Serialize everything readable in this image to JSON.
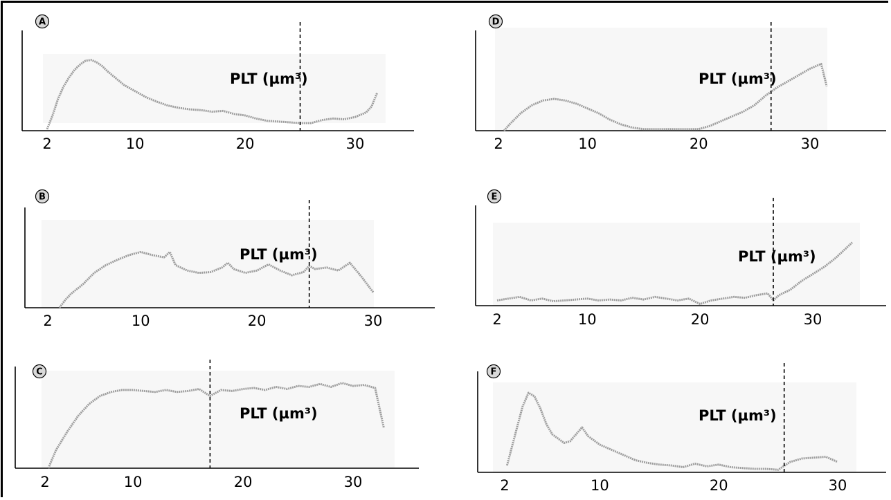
{
  "chart_data": [
    {
      "panel": "A",
      "type": "line",
      "annotation": "PLT (µm³)",
      "xticks": [
        2,
        10,
        20,
        30
      ],
      "xlim": [
        0,
        36
      ],
      "ylim": [
        0,
        100
      ],
      "cutoff_x": 25,
      "series": [
        {
          "color": "#9e9e9e",
          "x": [
            2.0,
            2.5,
            3,
            3.5,
            4,
            4.5,
            5,
            5.5,
            6,
            6.5,
            7,
            7.5,
            8,
            8.5,
            9,
            9.5,
            10,
            11,
            12,
            13,
            14,
            15,
            16,
            17,
            18,
            19,
            20,
            21,
            22,
            23,
            24,
            25,
            26,
            27,
            28,
            29,
            30,
            31,
            31.5,
            32
          ],
          "y": [
            2,
            20,
            42,
            58,
            70,
            80,
            87,
            92,
            93,
            90,
            85,
            78,
            72,
            66,
            60,
            56,
            52,
            44,
            38,
            33,
            30,
            28,
            27,
            25,
            26,
            22,
            20,
            16,
            13,
            12,
            11,
            10,
            10,
            14,
            16,
            15,
            18,
            24,
            32,
            50
          ]
        }
      ]
    },
    {
      "panel": "B",
      "type": "line",
      "annotation": "PLT (µm³)",
      "xticks": [
        2,
        10,
        20,
        30
      ],
      "xlim": [
        0,
        36
      ],
      "ylim": [
        0,
        100
      ],
      "cutoff_x": 24.5,
      "series": [
        {
          "color": "#9e9e9e",
          "x": [
            3,
            3.5,
            4,
            5,
            6,
            7,
            8,
            9,
            10,
            11,
            12,
            12.5,
            13,
            14,
            15,
            16,
            17,
            17.5,
            18,
            19,
            20,
            21,
            22,
            23,
            24,
            24.5,
            25,
            26,
            27,
            28,
            29,
            30
          ],
          "y": [
            0,
            10,
            18,
            30,
            45,
            55,
            62,
            68,
            72,
            68,
            65,
            72,
            55,
            48,
            45,
            46,
            52,
            58,
            50,
            45,
            48,
            56,
            48,
            42,
            46,
            54,
            50,
            52,
            48,
            58,
            40,
            20
          ]
        }
      ]
    },
    {
      "panel": "C",
      "type": "line",
      "annotation": "PLT (µm³)",
      "xticks": [
        2,
        10,
        20,
        30
      ],
      "xlim": [
        0,
        36
      ],
      "ylim": [
        0,
        100
      ],
      "cutoff_x": 17,
      "series": [
        {
          "color": "#9e9e9e",
          "x": [
            2.3,
            3,
            4,
            5,
            6,
            7,
            8,
            9,
            10,
            11,
            12,
            13,
            14,
            15,
            16,
            17,
            18,
            19,
            20,
            21,
            22,
            23,
            24,
            25,
            26,
            27,
            28,
            29,
            30,
            31,
            32,
            32.8
          ],
          "y": [
            0,
            18,
            36,
            52,
            64,
            72,
            76,
            78,
            78,
            77,
            76,
            78,
            76,
            77,
            79,
            72,
            78,
            77,
            79,
            80,
            78,
            81,
            79,
            82,
            81,
            84,
            81,
            85,
            82,
            83,
            80,
            40
          ]
        }
      ]
    },
    {
      "panel": "D",
      "type": "line",
      "annotation": "PLT (µm³)",
      "xticks": [
        2,
        10,
        20,
        30
      ],
      "xlim": [
        0,
        36
      ],
      "ylim": [
        0,
        100
      ],
      "cutoff_x": 26.5,
      "series": [
        {
          "color": "#9e9e9e",
          "x": [
            2.5,
            3,
            4,
            5,
            6,
            7,
            8,
            9,
            10,
            11,
            12,
            13,
            14,
            15,
            16,
            17,
            18,
            19,
            20,
            21,
            22,
            23,
            24,
            25,
            26,
            27,
            28,
            29,
            30,
            31,
            31.5
          ],
          "y": [
            0,
            8,
            22,
            32,
            38,
            40,
            38,
            34,
            28,
            22,
            14,
            8,
            4,
            2,
            2,
            2,
            2,
            2,
            2,
            6,
            12,
            18,
            24,
            32,
            44,
            54,
            62,
            70,
            78,
            84,
            56
          ]
        }
      ]
    },
    {
      "panel": "E",
      "type": "line",
      "annotation": "PLT (µm³)",
      "xticks": [
        2,
        10,
        20,
        30
      ],
      "xlim": [
        0,
        36
      ],
      "ylim": [
        0,
        100
      ],
      "cutoff_x": 26.5,
      "series": [
        {
          "color": "#9e9e9e",
          "x": [
            2,
            3,
            4,
            5,
            6,
            7,
            8,
            9,
            10,
            11,
            12,
            13,
            14,
            15,
            16,
            17,
            18,
            19,
            20,
            21,
            22,
            23,
            24,
            25,
            26,
            26.5,
            27,
            28,
            29,
            30,
            31,
            32,
            33,
            33.5
          ],
          "y": [
            6,
            8,
            10,
            6,
            8,
            5,
            6,
            7,
            8,
            6,
            7,
            6,
            9,
            7,
            10,
            8,
            6,
            8,
            2,
            6,
            8,
            10,
            9,
            12,
            14,
            6,
            12,
            18,
            28,
            36,
            44,
            54,
            66,
            72
          ]
        }
      ]
    },
    {
      "panel": "F",
      "type": "line",
      "annotation": "PLT (µm³)",
      "xticks": [
        2,
        10,
        20,
        30
      ],
      "xlim": [
        0,
        36
      ],
      "ylim": [
        0,
        100
      ],
      "cutoff_x": 25.5,
      "series": [
        {
          "color": "#9e9e9e",
          "x": [
            2.2,
            3,
            3.5,
            4,
            4.5,
            5,
            5.5,
            6,
            7,
            7.5,
            8,
            8.5,
            9,
            10,
            11,
            12,
            13,
            14,
            15,
            16,
            17,
            18,
            19,
            20,
            21,
            22,
            23,
            24,
            25,
            26,
            27,
            28,
            29,
            30
          ],
          "y": [
            8,
            50,
            76,
            92,
            88,
            74,
            56,
            44,
            34,
            36,
            44,
            52,
            42,
            32,
            26,
            20,
            14,
            11,
            9,
            8,
            6,
            10,
            7,
            9,
            6,
            5,
            4,
            4,
            3,
            12,
            16,
            17,
            18,
            12
          ]
        }
      ]
    }
  ]
}
